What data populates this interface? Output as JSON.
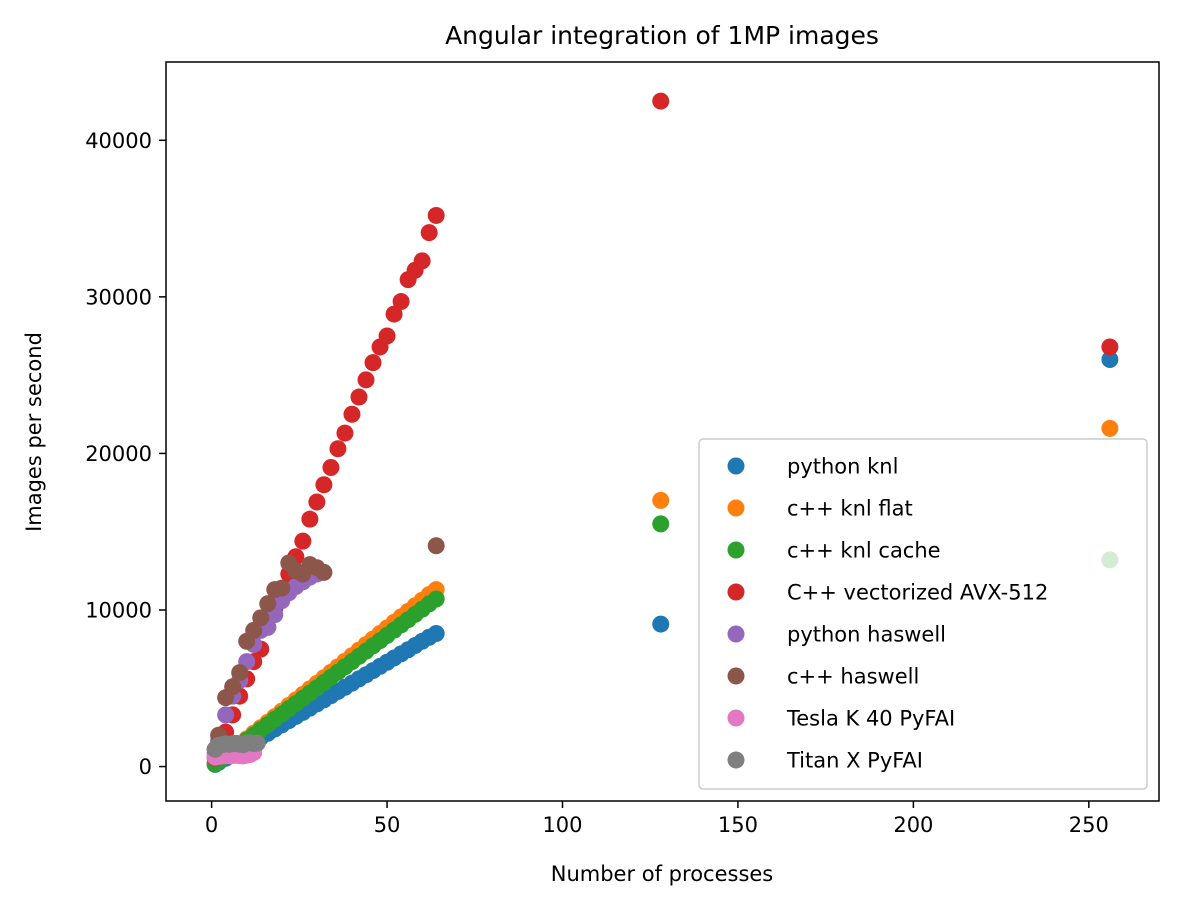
{
  "chart_data": {
    "type": "scatter",
    "title": "Angular integration of 1MP images",
    "xlabel": "Number of processes",
    "ylabel": "Images per second",
    "xlim": [
      -13,
      270
    ],
    "ylim": [
      -2200,
      45000
    ],
    "xticks": [
      0,
      50,
      100,
      150,
      200,
      250
    ],
    "yticks": [
      0,
      10000,
      20000,
      30000,
      40000
    ],
    "grid": false,
    "legend_position": "lower right",
    "series": [
      {
        "name": "python knl",
        "color": "#1f77b4",
        "x": [
          1,
          2,
          4,
          6,
          8,
          10,
          12,
          14,
          16,
          18,
          20,
          22,
          24,
          26,
          28,
          30,
          32,
          34,
          36,
          38,
          40,
          42,
          44,
          46,
          48,
          50,
          52,
          54,
          56,
          58,
          60,
          62,
          64,
          128,
          256
        ],
        "y": [
          140,
          270,
          530,
          800,
          1060,
          1330,
          1600,
          1860,
          2130,
          2400,
          2660,
          2930,
          3200,
          3460,
          3730,
          4000,
          4260,
          4530,
          4800,
          5060,
          5330,
          5600,
          5860,
          6130,
          6400,
          6660,
          6930,
          7200,
          7460,
          7730,
          8000,
          8260,
          8500,
          9100,
          26000
        ]
      },
      {
        "name": "c++ knl flat",
        "color": "#ff7f0e",
        "x": [
          1,
          2,
          4,
          6,
          8,
          10,
          12,
          14,
          16,
          18,
          20,
          22,
          24,
          26,
          28,
          30,
          32,
          34,
          36,
          38,
          40,
          42,
          44,
          46,
          48,
          50,
          52,
          54,
          56,
          58,
          60,
          62,
          64,
          128,
          256
        ],
        "y": [
          180,
          360,
          710,
          1060,
          1420,
          1770,
          2130,
          2480,
          2830,
          3190,
          3540,
          3900,
          4250,
          4600,
          4960,
          5310,
          5670,
          6020,
          6370,
          6730,
          7080,
          7440,
          7790,
          8140,
          8500,
          8850,
          9210,
          9560,
          9910,
          10270,
          10620,
          10980,
          11300,
          17000,
          21600
        ]
      },
      {
        "name": "c++ knl cache",
        "color": "#2ca02c",
        "x": [
          1,
          2,
          4,
          6,
          8,
          10,
          12,
          14,
          16,
          18,
          20,
          22,
          24,
          26,
          28,
          30,
          32,
          34,
          36,
          38,
          40,
          42,
          44,
          46,
          48,
          50,
          52,
          54,
          56,
          58,
          60,
          62,
          64,
          128,
          256
        ],
        "y": [
          170,
          340,
          670,
          1010,
          1340,
          1680,
          2010,
          2350,
          2680,
          3020,
          3350,
          3690,
          4020,
          4360,
          4690,
          5030,
          5360,
          5700,
          6030,
          6370,
          6700,
          7040,
          7370,
          7710,
          8040,
          8380,
          8710,
          9050,
          9380,
          9720,
          10050,
          10390,
          10700,
          15500,
          13200
        ]
      },
      {
        "name": "C++ vectorized AVX-512",
        "color": "#d62728",
        "x": [
          1,
          2,
          4,
          6,
          8,
          10,
          12,
          14,
          16,
          18,
          20,
          22,
          24,
          26,
          28,
          30,
          32,
          34,
          36,
          38,
          40,
          42,
          44,
          46,
          48,
          50,
          52,
          54,
          56,
          58,
          60,
          62,
          64,
          128,
          256
        ],
        "y": [
          550,
          1100,
          2200,
          3300,
          4500,
          5600,
          6700,
          7500,
          8900,
          10100,
          11000,
          12300,
          13400,
          14400,
          15800,
          16900,
          18000,
          19100,
          20300,
          21300,
          22500,
          23600,
          24700,
          25800,
          26800,
          27500,
          28900,
          29700,
          31100,
          31700,
          32300,
          34100,
          35200,
          42500,
          26800
        ]
      },
      {
        "name": "python haswell",
        "color": "#9467bd",
        "x": [
          1,
          2,
          4,
          6,
          8,
          10,
          12,
          14,
          16,
          18,
          20,
          22,
          24,
          26,
          28,
          30
        ],
        "y": [
          800,
          1650,
          3300,
          4500,
          5500,
          6700,
          7800,
          8700,
          8900,
          9700,
          10600,
          11100,
          11500,
          11800,
          12100,
          12300
        ]
      },
      {
        "name": "c++ haswell",
        "color": "#8c564b",
        "x": [
          1,
          2,
          4,
          6,
          8,
          10,
          12,
          14,
          16,
          18,
          20,
          22,
          24,
          26,
          28,
          30,
          32,
          64
        ],
        "y": [
          1100,
          2000,
          4400,
          5100,
          6000,
          8000,
          8700,
          9500,
          10400,
          11300,
          11400,
          13000,
          12500,
          12300,
          12900,
          12700,
          12400,
          14100
        ]
      },
      {
        "name": "Tesla K 40 PyFAI",
        "color": "#e377c2",
        "x": [
          1,
          2,
          3,
          4,
          5,
          6,
          7,
          8,
          9,
          10,
          11,
          12
        ],
        "y": [
          600,
          650,
          680,
          700,
          690,
          710,
          720,
          700,
          680,
          730,
          780,
          900
        ]
      },
      {
        "name": "Titan X PyFAI",
        "color": "#7f7f7f",
        "x": [
          1,
          2,
          3,
          4,
          5,
          6,
          7,
          8,
          9,
          10,
          11,
          12,
          13
        ],
        "y": [
          1100,
          1350,
          1400,
          1450,
          1420,
          1460,
          1480,
          1430,
          1400,
          1500,
          1520,
          1470,
          1500
        ]
      }
    ]
  }
}
